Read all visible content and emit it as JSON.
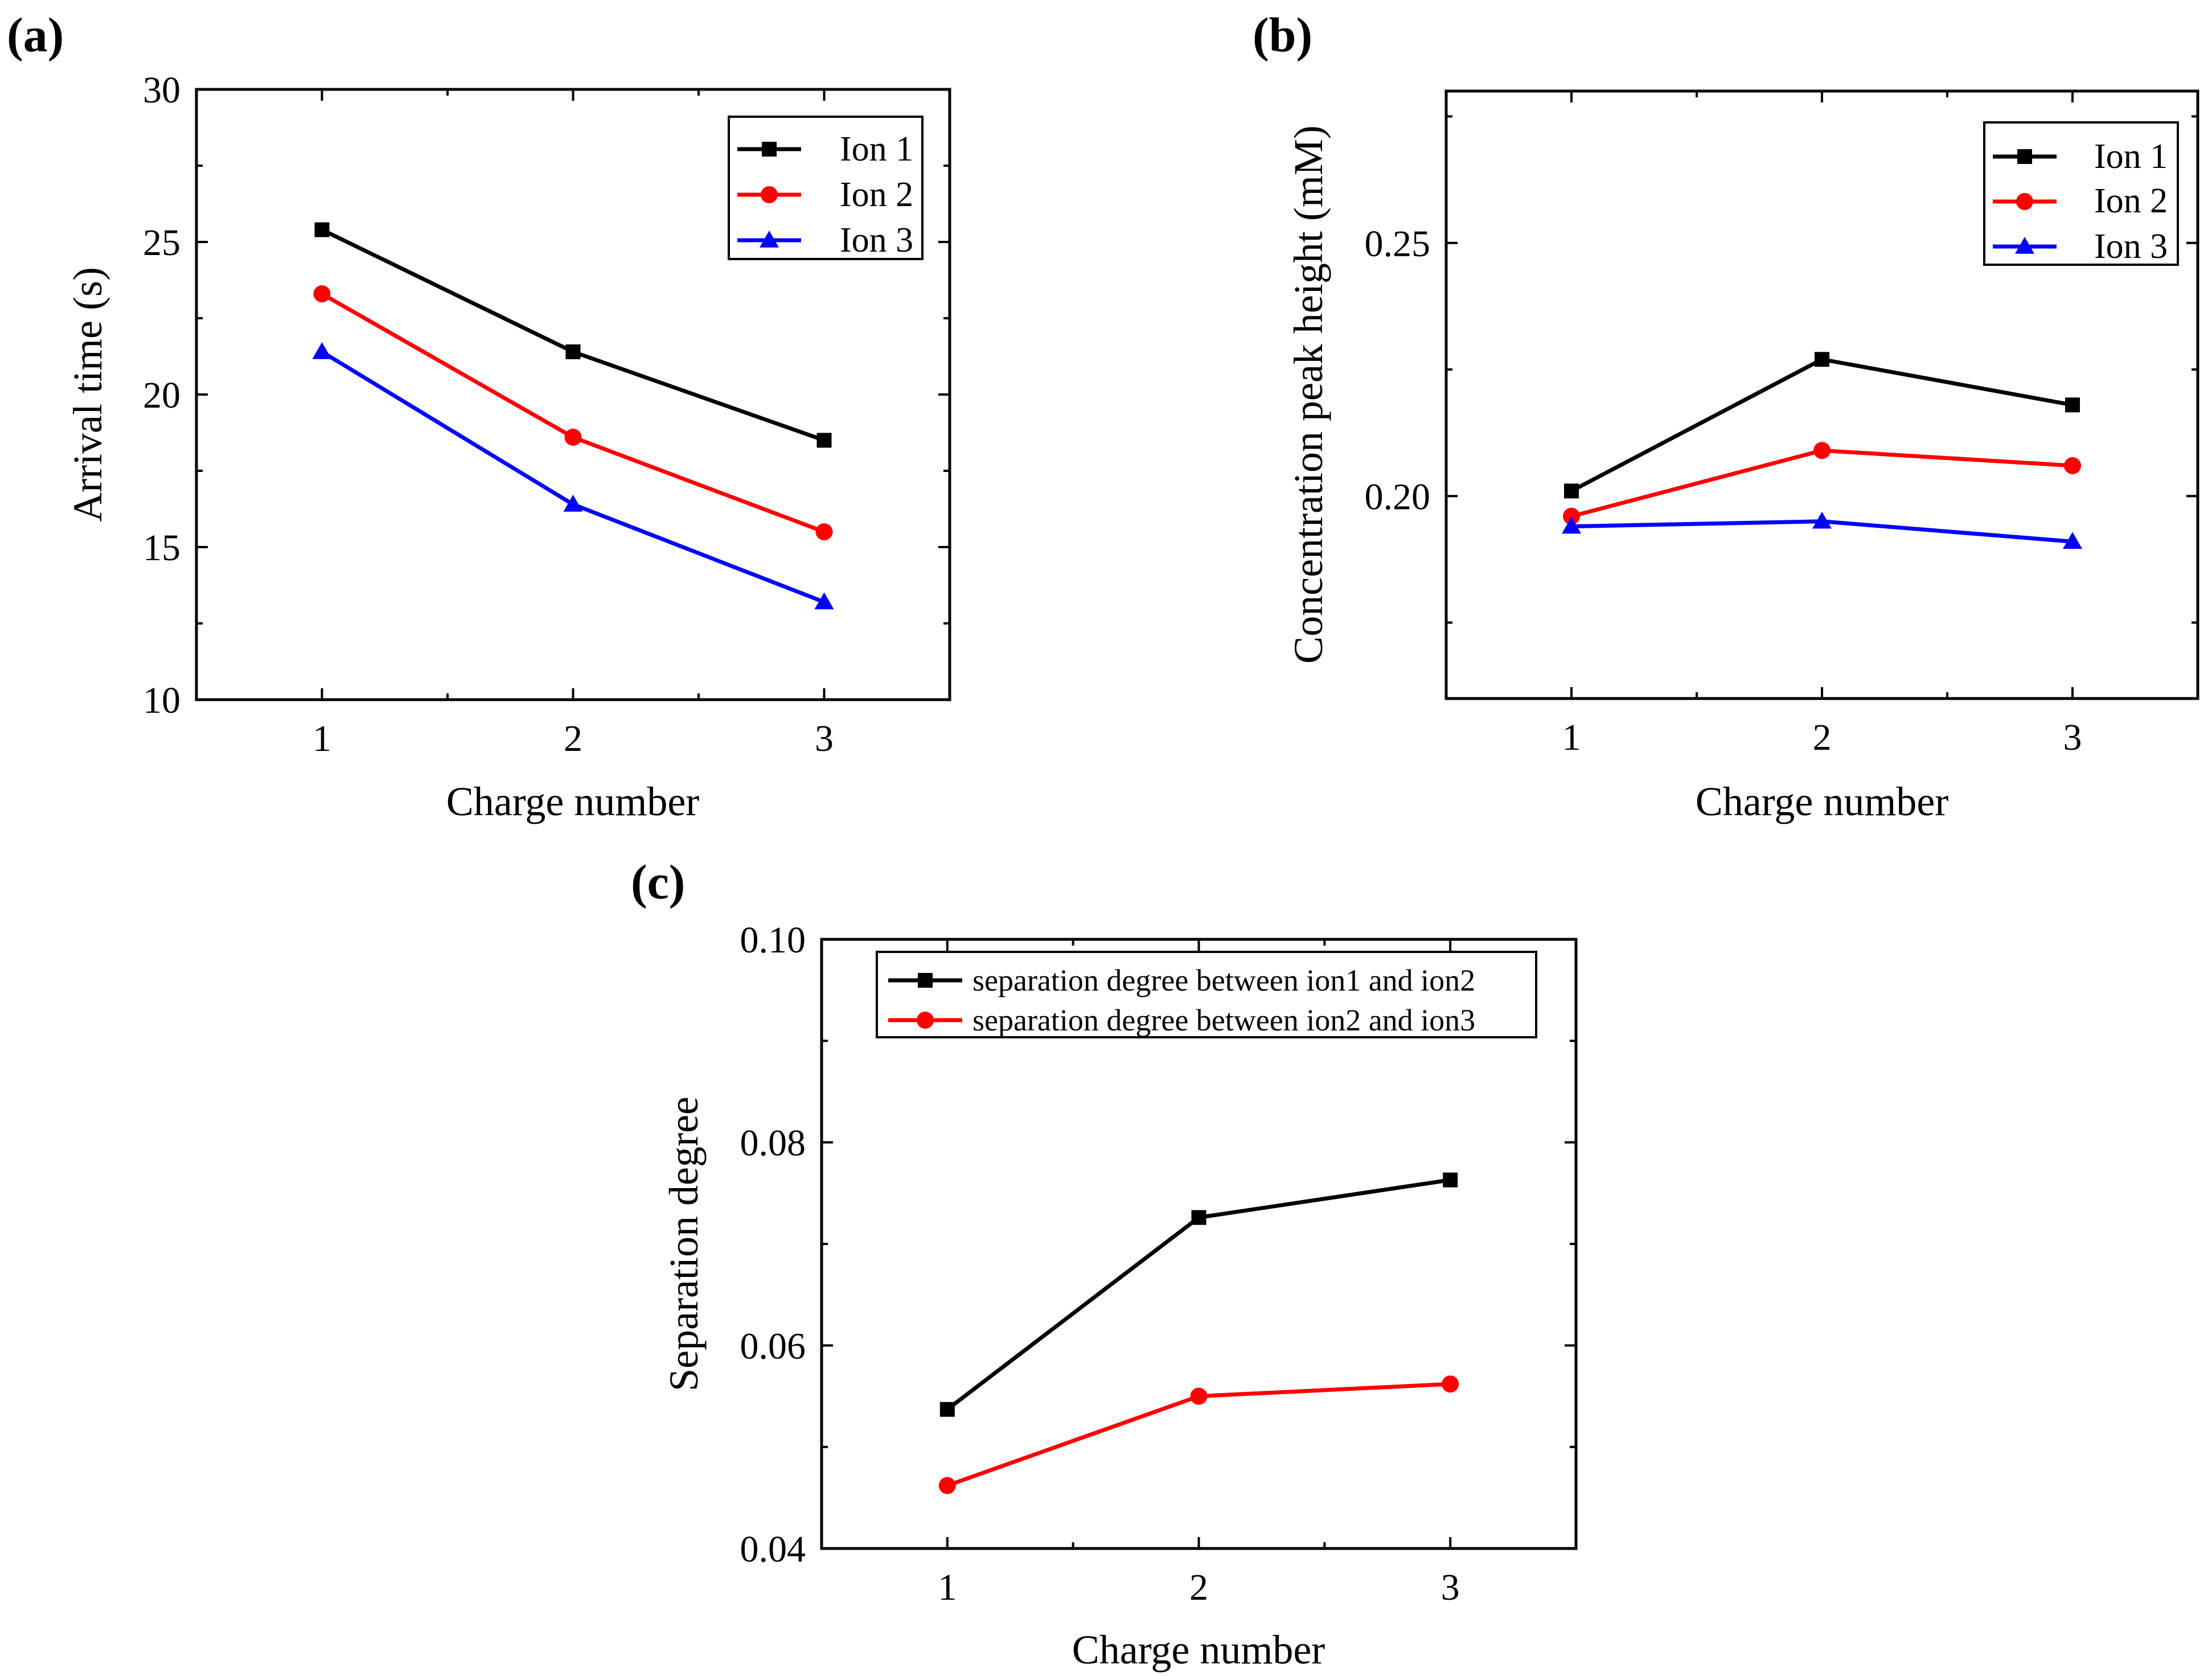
{
  "figure": {
    "panels": [
      {
        "id": "a",
        "label": "(a)"
      },
      {
        "id": "b",
        "label": "(b)"
      },
      {
        "id": "c",
        "label": "(c)"
      }
    ]
  },
  "chart_data": [
    {
      "panel": "(a)",
      "type": "line",
      "title": "",
      "xlabel": "Charge number",
      "ylabel": "Arrival time (s)",
      "x": [
        1,
        2,
        3
      ],
      "xlim": [
        0.5,
        3.5
      ],
      "ylim": [
        10,
        30
      ],
      "xticks": [
        1,
        2,
        3
      ],
      "yticks": [
        10,
        15,
        20,
        25,
        30
      ],
      "ytick_labels": [
        "10",
        "15",
        "20",
        "25",
        "30"
      ],
      "legend_position": "top-right",
      "series": [
        {
          "name": "Ion 1",
          "color": "#000000",
          "marker": "square",
          "values": [
            25.4,
            21.4,
            18.5
          ]
        },
        {
          "name": "Ion 2",
          "color": "#ff0000",
          "marker": "circle",
          "values": [
            23.3,
            18.6,
            15.5
          ]
        },
        {
          "name": "Ion 3",
          "color": "#0000ff",
          "marker": "triangle",
          "values": [
            21.4,
            16.4,
            13.2
          ]
        }
      ]
    },
    {
      "panel": "(b)",
      "type": "line",
      "title": "",
      "xlabel": "Charge number",
      "ylabel": "Concentration peak height (mM)",
      "x": [
        1,
        2,
        3
      ],
      "xlim": [
        0.5,
        3.5
      ],
      "ylim": [
        0.16,
        0.28
      ],
      "xticks": [
        1,
        2,
        3
      ],
      "yticks": [
        0.2,
        0.25
      ],
      "ytick_labels": [
        "0.20",
        "0.25"
      ],
      "legend_position": "top-right",
      "series": [
        {
          "name": "Ion 1",
          "color": "#000000",
          "marker": "square",
          "values": [
            0.201,
            0.227,
            0.218
          ]
        },
        {
          "name": "Ion 2",
          "color": "#ff0000",
          "marker": "circle",
          "values": [
            0.196,
            0.209,
            0.206
          ]
        },
        {
          "name": "Ion 3",
          "color": "#0000ff",
          "marker": "triangle",
          "values": [
            0.194,
            0.195,
            0.191
          ]
        }
      ]
    },
    {
      "panel": "(c)",
      "type": "line",
      "title": "",
      "xlabel": "Charge number",
      "ylabel": "Separation degree",
      "x": [
        1,
        2,
        3
      ],
      "xlim": [
        0.5,
        3.5
      ],
      "ylim": [
        0.04,
        0.1
      ],
      "xticks": [
        1,
        2,
        3
      ],
      "yticks": [
        0.04,
        0.06,
        0.08,
        0.1
      ],
      "ytick_labels": [
        "0.04",
        "0.06",
        "0.08",
        "0.10"
      ],
      "legend_position": "top-right",
      "series": [
        {
          "name": "separation degree between ion1 and ion2",
          "color": "#000000",
          "marker": "square",
          "values": [
            0.0537,
            0.0726,
            0.0763
          ]
        },
        {
          "name": "separation degree between ion2 and ion3",
          "color": "#ff0000",
          "marker": "circle",
          "values": [
            0.0462,
            0.055,
            0.0562
          ]
        }
      ]
    }
  ]
}
